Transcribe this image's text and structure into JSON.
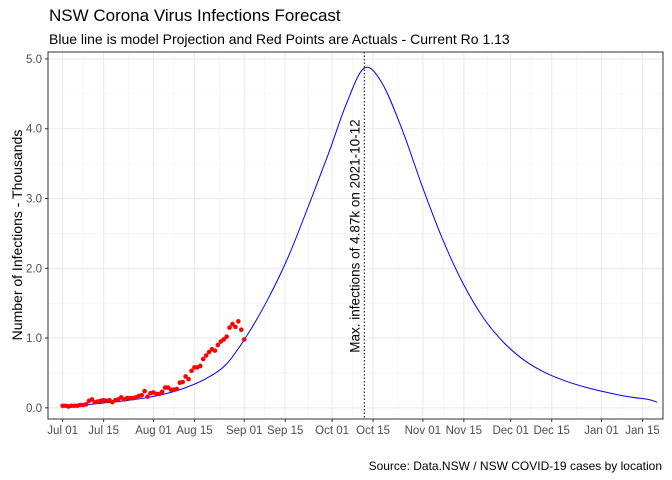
{
  "chart_data": {
    "type": "line",
    "title": "NSW Corona Virus Infections Forecast",
    "subtitle": "Blue line is model Projection and Red Points are Actuals - Current Ro 1.13",
    "caption": "Source: Data.NSW / NSW COVID-19 cases by location",
    "xlabel": "",
    "ylabel": "Number of Infections - Thousands",
    "x_axis_type": "date",
    "xlim": [
      "2021-06-26",
      "2022-01-22"
    ],
    "ylim": [
      -0.16,
      5.1
    ],
    "x_ticks": [
      {
        "date": "2021-07-01",
        "label": "Jul 01"
      },
      {
        "date": "2021-07-15",
        "label": "Jul 15"
      },
      {
        "date": "2021-08-01",
        "label": "Aug 01"
      },
      {
        "date": "2021-08-15",
        "label": "Aug 15"
      },
      {
        "date": "2021-09-01",
        "label": "Sep 01"
      },
      {
        "date": "2021-09-15",
        "label": "Sep 15"
      },
      {
        "date": "2021-10-01",
        "label": "Oct 01"
      },
      {
        "date": "2021-10-15",
        "label": "Oct 15"
      },
      {
        "date": "2021-11-01",
        "label": "Nov 01"
      },
      {
        "date": "2021-11-15",
        "label": "Nov 15"
      },
      {
        "date": "2021-12-01",
        "label": "Dec 01"
      },
      {
        "date": "2021-12-15",
        "label": "Dec 15"
      },
      {
        "date": "2022-01-01",
        "label": "Jan 01"
      },
      {
        "date": "2022-01-15",
        "label": "Jan 15"
      }
    ],
    "y_ticks": [
      {
        "value": 0,
        "label": "0.0"
      },
      {
        "value": 1,
        "label": "1.0"
      },
      {
        "value": 2,
        "label": "2.0"
      },
      {
        "value": 3,
        "label": "3.0"
      },
      {
        "value": 4,
        "label": "4.0"
      },
      {
        "value": 5,
        "label": "5.0"
      }
    ],
    "grid": true,
    "legend": "none",
    "series": [
      {
        "type": "line",
        "color": "#0000ff",
        "points": [
          [
            "2021-07-01",
            0.02
          ],
          [
            "2021-07-08",
            0.04
          ],
          [
            "2021-07-15",
            0.07
          ],
          [
            "2021-07-22",
            0.1
          ],
          [
            "2021-07-29",
            0.14
          ],
          [
            "2021-08-05",
            0.2
          ],
          [
            "2021-08-12",
            0.29
          ],
          [
            "2021-08-19",
            0.42
          ],
          [
            "2021-08-26",
            0.63
          ],
          [
            "2021-09-02",
            1.04
          ],
          [
            "2021-09-09",
            1.55
          ],
          [
            "2021-09-16",
            2.16
          ],
          [
            "2021-09-23",
            2.9
          ],
          [
            "2021-09-30",
            3.67
          ],
          [
            "2021-10-06",
            4.37
          ],
          [
            "2021-10-12",
            4.87
          ],
          [
            "2021-10-18",
            4.66
          ],
          [
            "2021-10-25",
            3.98
          ],
          [
            "2021-11-01",
            3.15
          ],
          [
            "2021-11-08",
            2.39
          ],
          [
            "2021-11-15",
            1.76
          ],
          [
            "2021-11-22",
            1.27
          ],
          [
            "2021-11-29",
            0.92
          ],
          [
            "2021-12-06",
            0.67
          ],
          [
            "2021-12-13",
            0.5
          ],
          [
            "2021-12-20",
            0.38
          ],
          [
            "2021-12-27",
            0.29
          ],
          [
            "2022-01-03",
            0.22
          ],
          [
            "2022-01-10",
            0.16
          ],
          [
            "2022-01-17",
            0.12
          ],
          [
            "2022-01-20",
            0.08
          ]
        ]
      },
      {
        "type": "scatter",
        "color": "#ff0000",
        "points": [
          [
            "2021-07-01",
            0.03
          ],
          [
            "2021-07-02",
            0.03
          ],
          [
            "2021-07-03",
            0.02
          ],
          [
            "2021-07-04",
            0.03
          ],
          [
            "2021-07-05",
            0.03
          ],
          [
            "2021-07-06",
            0.03
          ],
          [
            "2021-07-07",
            0.04
          ],
          [
            "2021-07-08",
            0.04
          ],
          [
            "2021-07-09",
            0.05
          ],
          [
            "2021-07-10",
            0.1
          ],
          [
            "2021-07-11",
            0.12
          ],
          [
            "2021-07-12",
            0.08
          ],
          [
            "2021-07-13",
            0.09
          ],
          [
            "2021-07-14",
            0.1
          ],
          [
            "2021-07-15",
            0.11
          ],
          [
            "2021-07-16",
            0.1
          ],
          [
            "2021-07-17",
            0.11
          ],
          [
            "2021-07-18",
            0.08
          ],
          [
            "2021-07-19",
            0.11
          ],
          [
            "2021-07-20",
            0.12
          ],
          [
            "2021-07-21",
            0.15
          ],
          [
            "2021-07-22",
            0.12
          ],
          [
            "2021-07-23",
            0.14
          ],
          [
            "2021-07-24",
            0.14
          ],
          [
            "2021-07-25",
            0.14
          ],
          [
            "2021-07-26",
            0.15
          ],
          [
            "2021-07-27",
            0.17
          ],
          [
            "2021-07-28",
            0.18
          ],
          [
            "2021-07-29",
            0.24
          ],
          [
            "2021-07-30",
            0.16
          ],
          [
            "2021-07-31",
            0.21
          ],
          [
            "2021-08-01",
            0.22
          ],
          [
            "2021-08-02",
            0.2
          ],
          [
            "2021-08-03",
            0.2
          ],
          [
            "2021-08-04",
            0.23
          ],
          [
            "2021-08-05",
            0.29
          ],
          [
            "2021-08-06",
            0.29
          ],
          [
            "2021-08-07",
            0.26
          ],
          [
            "2021-08-08",
            0.26
          ],
          [
            "2021-08-09",
            0.27
          ],
          [
            "2021-08-10",
            0.36
          ],
          [
            "2021-08-11",
            0.37
          ],
          [
            "2021-08-12",
            0.45
          ],
          [
            "2021-08-13",
            0.41
          ],
          [
            "2021-08-14",
            0.53
          ],
          [
            "2021-08-15",
            0.58
          ],
          [
            "2021-08-16",
            0.58
          ],
          [
            "2021-08-17",
            0.6
          ],
          [
            "2021-08-18",
            0.7
          ],
          [
            "2021-08-19",
            0.75
          ],
          [
            "2021-08-20",
            0.8
          ],
          [
            "2021-08-21",
            0.84
          ],
          [
            "2021-08-22",
            0.82
          ],
          [
            "2021-08-23",
            0.9
          ],
          [
            "2021-08-24",
            0.95
          ],
          [
            "2021-08-25",
            0.98
          ],
          [
            "2021-08-26",
            1.02
          ],
          [
            "2021-08-27",
            1.15
          ],
          [
            "2021-08-28",
            1.2
          ],
          [
            "2021-08-29",
            1.16
          ],
          [
            "2021-08-30",
            1.24
          ],
          [
            "2021-08-31",
            1.12
          ],
          [
            "2021-09-01",
            0.98
          ]
        ]
      }
    ],
    "annotations": [
      {
        "type": "vline",
        "date": "2021-10-12",
        "style": "dotted",
        "color": "#000000",
        "text": "Max. infections of 4.87k  on 2021-10-12",
        "text_rotation": -90
      }
    ]
  }
}
